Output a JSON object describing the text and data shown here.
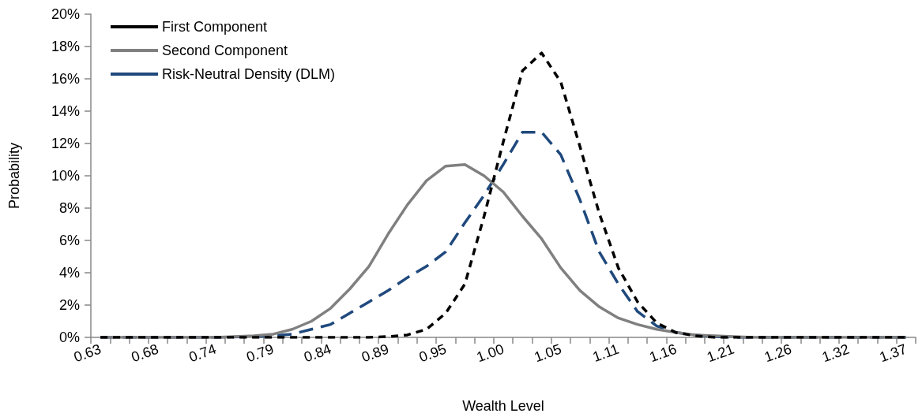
{
  "chart_data": {
    "type": "line",
    "xlabel": "Wealth Level",
    "ylabel": "Probability",
    "categories": [
      "0.63",
      null,
      null,
      "0.68",
      null,
      null,
      "0.74",
      null,
      null,
      "0.79",
      null,
      null,
      "0.84",
      null,
      null,
      "0.89",
      null,
      null,
      "0.95",
      null,
      null,
      "1.00",
      null,
      null,
      "1.05",
      null,
      null,
      "1.11",
      null,
      null,
      "1.16",
      null,
      null,
      "1.21",
      null,
      null,
      "1.26",
      null,
      null,
      "1.32",
      null,
      null,
      "1.37"
    ],
    "series": [
      {
        "name": "First Component",
        "color": "#000000",
        "line_style": "dashed",
        "values": [
          0,
          0,
          0,
          0,
          0,
          0,
          0,
          0,
          0,
          0,
          0,
          0,
          0,
          0,
          0,
          0.05,
          0.15,
          0.5,
          1.5,
          3.3,
          7.5,
          12.1,
          16.5,
          17.6,
          15.8,
          11.8,
          7.7,
          4.3,
          2.2,
          0.9,
          0.3,
          0.1,
          0,
          0,
          0,
          0,
          0,
          0,
          0,
          0,
          0,
          0,
          0
        ]
      },
      {
        "name": "Second Component",
        "color": "#808080",
        "line_style": "solid",
        "values": [
          0,
          0,
          0,
          0,
          0,
          0,
          0,
          0.05,
          0.1,
          0.2,
          0.5,
          1.0,
          1.8,
          3.0,
          4.4,
          6.4,
          8.2,
          9.7,
          10.6,
          10.7,
          10.0,
          9.0,
          7.5,
          6.1,
          4.3,
          2.9,
          1.9,
          1.2,
          0.8,
          0.5,
          0.3,
          0.15,
          0.1,
          0.05,
          0,
          0,
          0,
          0,
          0,
          0,
          0,
          0,
          0
        ]
      },
      {
        "name": "Risk-Neutral Density (DLM)",
        "color": "#1f497d",
        "line_style": "dashed",
        "values": [
          0,
          0,
          0,
          0,
          0,
          0,
          0,
          0.03,
          0.05,
          0.1,
          0.2,
          0.5,
          0.8,
          1.5,
          2.2,
          2.9,
          3.7,
          4.4,
          5.3,
          7.1,
          8.8,
          10.7,
          12.7,
          12.7,
          11.3,
          8.5,
          5.3,
          3.3,
          1.6,
          0.7,
          0.3,
          0.15,
          0.05,
          0,
          0,
          0,
          0,
          0,
          0,
          0,
          0,
          0,
          0
        ]
      }
    ],
    "ylim": [
      0,
      20
    ],
    "yticks": [
      {
        "value": 0,
        "label": "0%"
      },
      {
        "value": 2,
        "label": "2%"
      },
      {
        "value": 4,
        "label": "4%"
      },
      {
        "value": 6,
        "label": "6%"
      },
      {
        "value": 8,
        "label": "8%"
      },
      {
        "value": 10,
        "label": "10%"
      },
      {
        "value": 12,
        "label": "12%"
      },
      {
        "value": 14,
        "label": "14%"
      },
      {
        "value": 16,
        "label": "16%"
      },
      {
        "value": 18,
        "label": "18%"
      },
      {
        "value": 20,
        "label": "20%"
      }
    ],
    "grid": false,
    "legend": "top left",
    "marker": "none"
  }
}
